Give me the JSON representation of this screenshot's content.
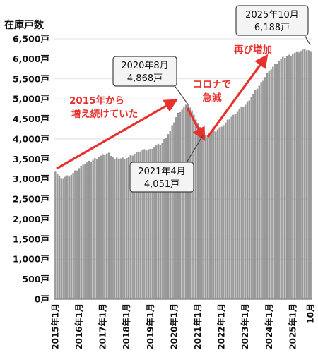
{
  "chart_data": {
    "type": "bar",
    "ylabel": "在庫戸数",
    "ylim": [
      0,
      6500
    ],
    "ytick_labels": [
      "0戸",
      "500戸",
      "1,000戸",
      "1,500戸",
      "2,000戸",
      "2,500戸",
      "3,000戸",
      "3,500戸",
      "4,000戸",
      "4,500戸",
      "5,000戸",
      "5,500戸",
      "6,000戸",
      "6,500戸"
    ],
    "xtick_labels": [
      "2015年1月",
      "2016年1月",
      "2017年1月",
      "2018年1月",
      "2019年1月",
      "2020年1月",
      "2021年1月",
      "2022年1月",
      "2023年1月",
      "2024年1月",
      "2025年1月",
      "10月"
    ],
    "start": "2015年1月",
    "anchors": [
      {
        "i": 0,
        "v": 3180
      },
      {
        "i": 3,
        "v": 3020
      },
      {
        "i": 8,
        "v": 3100
      },
      {
        "i": 14,
        "v": 3350
      },
      {
        "i": 22,
        "v": 3550
      },
      {
        "i": 27,
        "v": 3650
      },
      {
        "i": 30,
        "v": 3500
      },
      {
        "i": 36,
        "v": 3520
      },
      {
        "i": 42,
        "v": 3680
      },
      {
        "i": 48,
        "v": 3750
      },
      {
        "i": 54,
        "v": 3900
      },
      {
        "i": 58,
        "v": 4200
      },
      {
        "i": 62,
        "v": 4650
      },
      {
        "i": 67,
        "v": 4868
      },
      {
        "i": 70,
        "v": 4600
      },
      {
        "i": 75,
        "v": 4051
      },
      {
        "i": 78,
        "v": 4100
      },
      {
        "i": 84,
        "v": 4300
      },
      {
        "i": 90,
        "v": 4600
      },
      {
        "i": 96,
        "v": 4850
      },
      {
        "i": 102,
        "v": 5250
      },
      {
        "i": 108,
        "v": 5700
      },
      {
        "i": 114,
        "v": 6000
      },
      {
        "i": 120,
        "v": 6120
      },
      {
        "i": 126,
        "v": 6230
      },
      {
        "i": 129,
        "v": 6188
      }
    ],
    "annotations": [
      {
        "line1": "2020年8月",
        "line2": "4,868戸"
      },
      {
        "line1": "2021年4月",
        "line2": "4,051戸"
      },
      {
        "line1": "2025年10月",
        "line2": "6,188戸"
      }
    ],
    "trend_labels": [
      {
        "line1": "2015年から",
        "line2": "増え続けていた"
      },
      {
        "line1": "コロナで",
        "line2": "急減"
      },
      {
        "line1": "再び増加",
        "line2": ""
      }
    ],
    "colors": {
      "bar": "#9b9b9b",
      "bar_edge": "#6e6e6e",
      "trend": "#e8302c",
      "grid": "#d9d9d9"
    }
  }
}
